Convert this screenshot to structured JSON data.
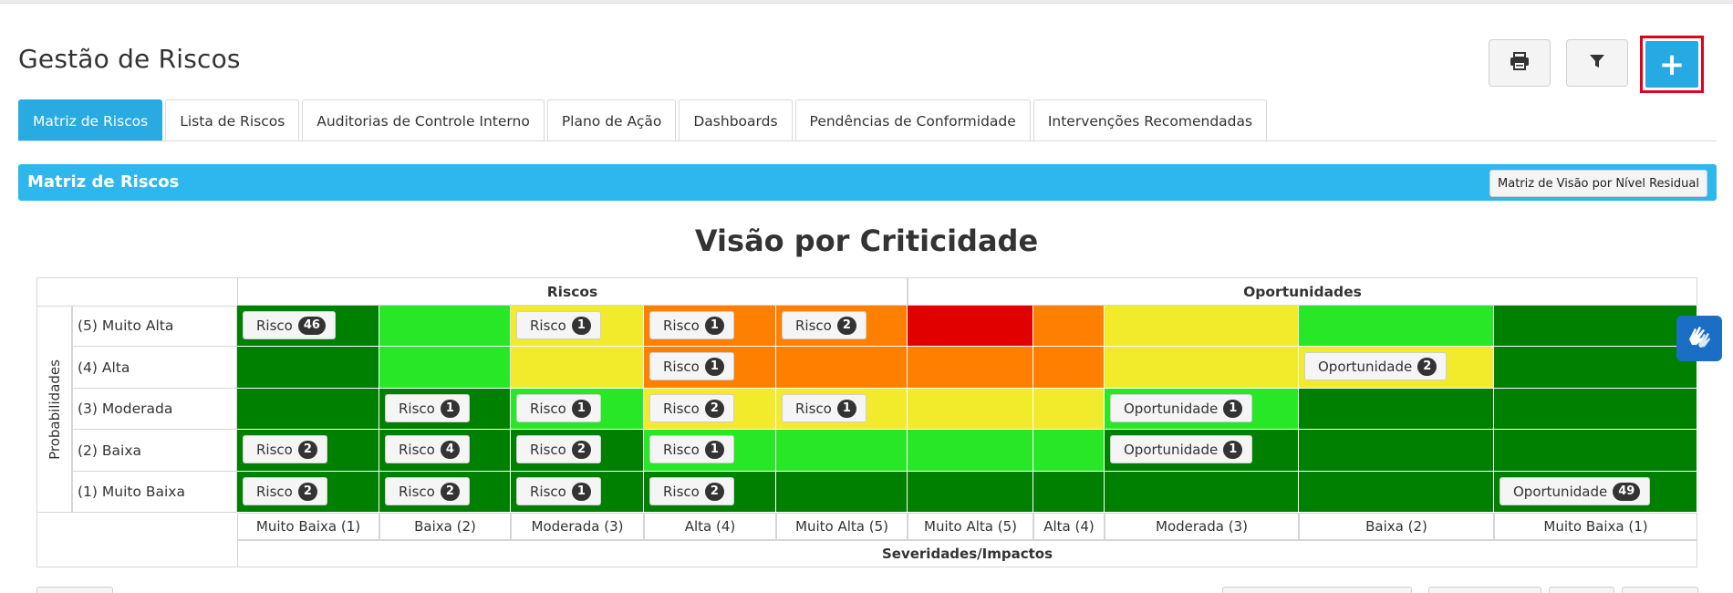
{
  "page": {
    "title": "Gestão de Riscos"
  },
  "toolbar": {
    "print_icon": "printer-icon",
    "filter_icon": "filter-icon",
    "add_label": "+",
    "add_highlight_color": "#e0001a"
  },
  "tabs": [
    {
      "label": "Matriz de Riscos",
      "active": true
    },
    {
      "label": "Lista de Riscos",
      "active": false
    },
    {
      "label": "Auditorias de Controle Interno",
      "active": false
    },
    {
      "label": "Plano de Ação",
      "active": false
    },
    {
      "label": "Dashboards",
      "active": false
    },
    {
      "label": "Pendências de Conformidade",
      "active": false
    },
    {
      "label": "Intervenções Recomendadas",
      "active": false
    }
  ],
  "panel": {
    "title": "Matriz de Riscos",
    "residual_button": "Matriz de Visão por Nível Residual"
  },
  "matrix": {
    "title": "Visão por Criticidade",
    "y_label": "Probabilidades",
    "x_label": "Severidades/Impactos",
    "groups": {
      "risks": "Riscos",
      "opportunities": "Oportunidades"
    },
    "rows": [
      "(5) Muito Alta",
      "(4) Alta",
      "(3) Moderada",
      "(2) Baixa",
      "(1) Muito Baixa"
    ],
    "columns": [
      "Muito Baixa (1)",
      "Baixa (2)",
      "Moderada (3)",
      "Alta (4)",
      "Muito Alta (5)",
      "Muito Alta (5)",
      "Alta (4)",
      "Moderada (3)",
      "Baixa (2)",
      "Muito Baixa (1)"
    ],
    "colors": {
      "dg": "#008000",
      "lg": "#27e727",
      "y": "#f2eb2c",
      "o": "#ff8000",
      "r": "#e00000"
    },
    "cell_colors": [
      [
        "dg",
        "lg",
        "y",
        "o",
        "o",
        "r",
        "o",
        "y",
        "lg",
        "dg"
      ],
      [
        "dg",
        "lg",
        "y",
        "o",
        "o",
        "o",
        "o",
        "y",
        "y",
        "dg"
      ],
      [
        "dg",
        "dg",
        "lg",
        "y",
        "y",
        "y",
        "y",
        "lg",
        "dg",
        "dg"
      ],
      [
        "dg",
        "dg",
        "dg",
        "lg",
        "lg",
        "lg",
        "lg",
        "dg",
        "dg",
        "dg"
      ],
      [
        "dg",
        "dg",
        "dg",
        "dg",
        "dg",
        "dg",
        "dg",
        "dg",
        "dg",
        "dg"
      ]
    ],
    "chips": [
      [
        {
          "label": "Risco",
          "count": "46"
        },
        null,
        {
          "label": "Risco",
          "count": "1"
        },
        {
          "label": "Risco",
          "count": "1"
        },
        {
          "label": "Risco",
          "count": "2"
        },
        null,
        null,
        null,
        null,
        null
      ],
      [
        null,
        null,
        null,
        {
          "label": "Risco",
          "count": "1"
        },
        null,
        null,
        null,
        null,
        {
          "label": "Oportunidade",
          "count": "2"
        },
        null
      ],
      [
        null,
        {
          "label": "Risco",
          "count": "1"
        },
        {
          "label": "Risco",
          "count": "1"
        },
        {
          "label": "Risco",
          "count": "2"
        },
        {
          "label": "Risco",
          "count": "1"
        },
        null,
        null,
        {
          "label": "Oportunidade",
          "count": "1"
        },
        null,
        null
      ],
      [
        {
          "label": "Risco",
          "count": "2"
        },
        {
          "label": "Risco",
          "count": "4"
        },
        {
          "label": "Risco",
          "count": "2"
        },
        {
          "label": "Risco",
          "count": "1"
        },
        null,
        null,
        null,
        {
          "label": "Oportunidade",
          "count": "1"
        },
        null,
        null
      ],
      [
        {
          "label": "Risco",
          "count": "2"
        },
        {
          "label": "Risco",
          "count": "2"
        },
        {
          "label": "Risco",
          "count": "1"
        },
        {
          "label": "Risco",
          "count": "2"
        },
        null,
        null,
        null,
        null,
        null,
        {
          "label": "Oportunidade",
          "count": "49"
        }
      ]
    ]
  },
  "accessibility": {
    "icon": "sign-language-hands-icon"
  }
}
